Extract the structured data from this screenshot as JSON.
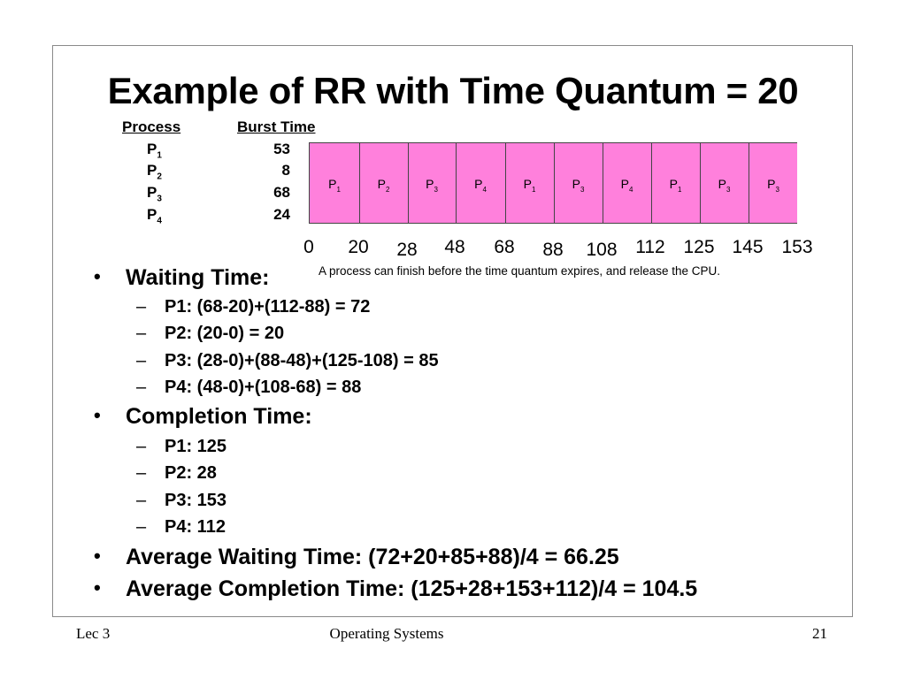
{
  "title": "Example of RR with Time Quantum = 20",
  "process_table": {
    "headers": {
      "process": "Process",
      "burst": "Burst Time"
    },
    "rows": [
      {
        "process": "P",
        "sub": "1",
        "burst": "53"
      },
      {
        "process": "P",
        "sub": "2",
        "burst": "8"
      },
      {
        "process": "P",
        "sub": "3",
        "burst": "68"
      },
      {
        "process": "P",
        "sub": "4",
        "burst": "24"
      }
    ]
  },
  "gantt": {
    "color": "#ff80dc",
    "segments": [
      {
        "label": "P",
        "sub": "1",
        "start": 0,
        "end": 20
      },
      {
        "label": "P",
        "sub": "2",
        "start": 20,
        "end": 28
      },
      {
        "label": "P",
        "sub": "3",
        "start": 28,
        "end": 48
      },
      {
        "label": "P",
        "sub": "4",
        "start": 48,
        "end": 68
      },
      {
        "label": "P",
        "sub": "1",
        "start": 68,
        "end": 88
      },
      {
        "label": "P",
        "sub": "3",
        "start": 88,
        "end": 108
      },
      {
        "label": "P",
        "sub": "4",
        "start": 108,
        "end": 112
      },
      {
        "label": "P",
        "sub": "1",
        "start": 112,
        "end": 125
      },
      {
        "label": "P",
        "sub": "3",
        "start": 125,
        "end": 145
      },
      {
        "label": "P",
        "sub": "3",
        "start": 145,
        "end": 153
      }
    ],
    "ticks": [
      "0",
      "20",
      "28",
      "48",
      "68",
      "88",
      "108",
      "112",
      "125",
      "145",
      "153"
    ],
    "note": "A process can finish before the time quantum expires, and release the CPU."
  },
  "bullets": {
    "dot": "•",
    "dash": "–",
    "waiting": {
      "label": "Waiting Time:",
      "items": [
        "P1: (68-20)+(112-88) = 72",
        "P2: (20-0) = 20",
        "P3: (28-0)+(88-48)+(125-108) = 85",
        "P4: (48-0)+(108-68) = 88"
      ]
    },
    "completion": {
      "label": "Completion Time:",
      "items": [
        "P1: 125",
        "P2: 28",
        "P3: 153",
        "P4: 112"
      ]
    },
    "avg_waiting": "Average Waiting Time: (72+20+85+88)/4 = 66.25",
    "avg_completion": "Average Completion Time: (125+28+153+112)/4 = 104.5"
  },
  "footer": {
    "left": "Lec 3",
    "center": "Operating Systems",
    "right": "21"
  }
}
